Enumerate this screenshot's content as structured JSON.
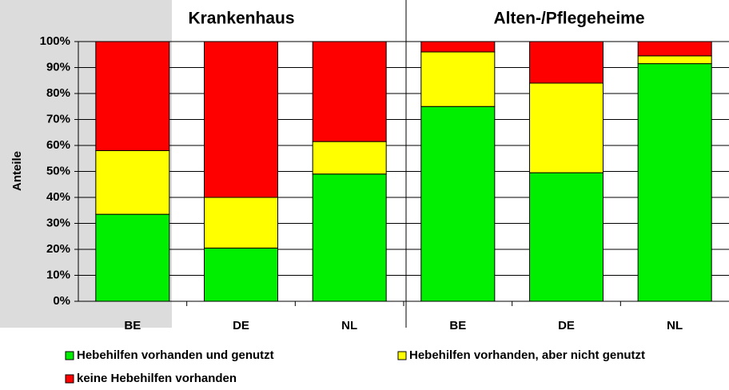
{
  "chart_data": {
    "type": "stacked_bar",
    "group_labels": [
      "Krankenhaus",
      "Alten-/Pflegeheime"
    ],
    "categories": [
      "BE",
      "DE",
      "NL",
      "BE",
      "DE",
      "NL"
    ],
    "ylabel": "Anteile",
    "ylim": [
      0,
      100
    ],
    "yticks": [
      {
        "value": 0,
        "label": "0%"
      },
      {
        "value": 10,
        "label": "10%"
      },
      {
        "value": 20,
        "label": "20%"
      },
      {
        "value": 30,
        "label": "30%"
      },
      {
        "value": 40,
        "label": "40%"
      },
      {
        "value": 50,
        "label": "50%"
      },
      {
        "value": 60,
        "label": "60%"
      },
      {
        "value": 70,
        "label": "70%"
      },
      {
        "value": 80,
        "label": "80%"
      },
      {
        "value": 90,
        "label": "90%"
      },
      {
        "value": 100,
        "label": "100%"
      }
    ],
    "grid": true,
    "series": [
      {
        "name": "Hebehilfen vorhanden und genutzt",
        "color": "#00ee00",
        "values": [
          33.5,
          20.5,
          49,
          75,
          49.5,
          91.5
        ]
      },
      {
        "name": "Hebehilfen vorhanden, aber nicht genutzt",
        "color": "#ffff00",
        "values": [
          24.5,
          19.5,
          12.5,
          21,
          34.5,
          3
        ]
      },
      {
        "name": "keine Hebehilfen vorhanden",
        "color": "#ff0000",
        "values": [
          42,
          60,
          38.5,
          4,
          16,
          5.5
        ]
      }
    ]
  }
}
